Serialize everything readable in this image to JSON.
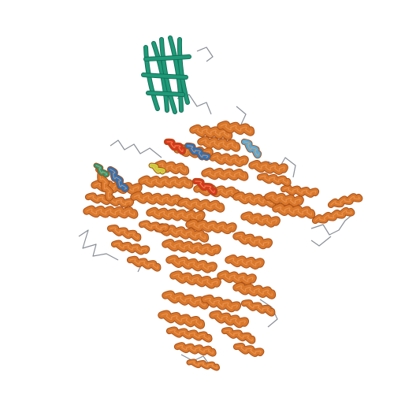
{
  "image": {
    "background": "#ffffff",
    "subject": "protein-ribbon-structure",
    "colors": {
      "main_chain": "#d9772b",
      "main_chain_dark": "#a8501a",
      "main_chain_light": "#f0a060",
      "domain_sheet": "#1f9a78",
      "domain_sheet_dark": "#137059",
      "helix_blue": "#2f72b8",
      "helix_cyan": "#58a9d6",
      "accent_red": "#d8361c",
      "accent_yellow": "#c9d63a",
      "coil": "#8a8f96"
    }
  }
}
